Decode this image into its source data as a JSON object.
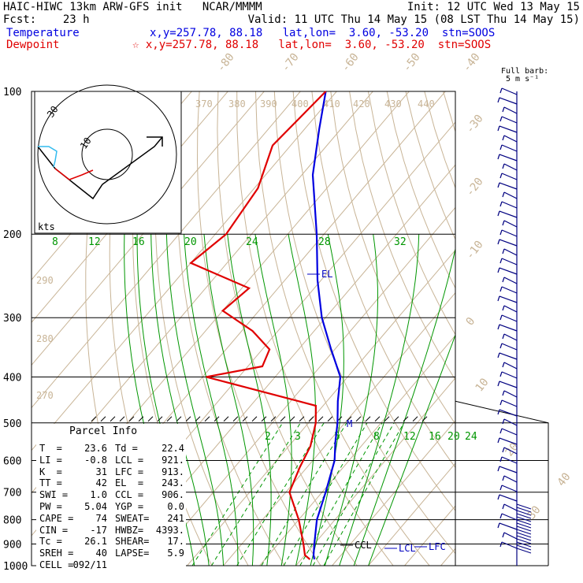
{
  "header": {
    "line1_left": "HAIC-HIWC 13km ARW-GFS init   NCAR/MMMM",
    "line1_right": "Init: 12 UTC Wed 13 May 15",
    "line2_left": "Fcst:    23 h",
    "line2_right": "Valid: 11 UTC Thu 14 May 15 (08 LST Thu 14 May 15)",
    "temp_label": "Temperature",
    "temp_info": "x,y=257.78, 88.18   lat,lon=  3.60, -53.20  stn=SOOS",
    "dew_label": "Dewpoint",
    "dew_info": "☆ x,y=257.78, 88.18   lat,lon=  3.60, -53.20  stn=SOOS",
    "barb_title": "Full barb:",
    "barb_unit": "5 m s⁻¹"
  },
  "colors": {
    "temperature": "#0000e0",
    "dewpoint": "#e00000",
    "isotherm": "#c8b496",
    "mixing_ratio": "#009600",
    "grid": "#000000"
  },
  "chart_data": {
    "type": "line",
    "title": "Skew-T log-P sounding",
    "y_scale": "log",
    "y_unit": "hPa",
    "pressure_ticks": [
      100,
      200,
      300,
      400,
      500,
      600,
      700,
      800,
      900,
      1000
    ],
    "isotherm_labels": [
      "-80",
      "-70",
      "-60",
      "-50",
      "-40",
      "-30",
      "-20",
      "-10",
      "0",
      "10",
      "20",
      "30",
      "40"
    ],
    "theta_labels": [
      "370",
      "380",
      "390",
      "400",
      "410",
      "420",
      "430",
      "440",
      "290",
      "280",
      "270"
    ],
    "mixing_ratio_labels_top": [
      "8",
      "12",
      "16",
      "20",
      "24",
      "28",
      "32"
    ],
    "mixing_ratio_labels_mid": [
      "2",
      "3",
      "5",
      "8",
      "12",
      "16",
      "20",
      "24"
    ],
    "series": [
      {
        "name": "Temperature",
        "points": [
          {
            "p": 100,
            "t": -83
          },
          {
            "p": 120,
            "t": -76
          },
          {
            "p": 150,
            "t": -67
          },
          {
            "p": 200,
            "t": -52
          },
          {
            "p": 250,
            "t": -41
          },
          {
            "p": 300,
            "t": -31
          },
          {
            "p": 350,
            "t": -21
          },
          {
            "p": 400,
            "t": -12
          },
          {
            "p": 450,
            "t": -7
          },
          {
            "p": 500,
            "t": -2
          },
          {
            "p": 550,
            "t": 2
          },
          {
            "p": 600,
            "t": 6
          },
          {
            "p": 700,
            "t": 11
          },
          {
            "p": 800,
            "t": 15
          },
          {
            "p": 900,
            "t": 20
          },
          {
            "p": 950,
            "t": 22.4
          },
          {
            "p": 970,
            "t": 23.6
          }
        ]
      },
      {
        "name": "Dewpoint",
        "points": [
          {
            "p": 100,
            "t": -83
          },
          {
            "p": 130,
            "t": -85
          },
          {
            "p": 160,
            "t": -79
          },
          {
            "p": 200,
            "t": -77
          },
          {
            "p": 230,
            "t": -80
          },
          {
            "p": 260,
            "t": -58
          },
          {
            "p": 290,
            "t": -60
          },
          {
            "p": 320,
            "t": -47
          },
          {
            "p": 350,
            "t": -38
          },
          {
            "p": 380,
            "t": -36
          },
          {
            "p": 400,
            "t": -49
          },
          {
            "p": 460,
            "t": -12
          },
          {
            "p": 500,
            "t": -8
          },
          {
            "p": 560,
            "t": -4
          },
          {
            "p": 620,
            "t": -2
          },
          {
            "p": 700,
            "t": 1
          },
          {
            "p": 800,
            "t": 10
          },
          {
            "p": 900,
            "t": 17
          },
          {
            "p": 950,
            "t": 20
          },
          {
            "p": 970,
            "t": 22.4
          }
        ]
      }
    ],
    "annotations": [
      {
        "text": "EL",
        "p": 243
      },
      {
        "text": "CCL",
        "p": 906
      },
      {
        "text": "LCL",
        "p": 921
      },
      {
        "text": "LFC",
        "p": 913
      },
      {
        "text": "M",
        "p": 500
      }
    ],
    "hodograph": {
      "axis_label": "kts",
      "ring_labels": [
        "30",
        "10"
      ]
    }
  },
  "parcel_info": {
    "title": "Parcel Info",
    "rows": [
      [
        "T  =",
        "23.6",
        "Td =",
        "22.4"
      ],
      [
        "LI =",
        "-0.8",
        "LCL =",
        "921."
      ],
      [
        "K  =",
        "31",
        "LFC =",
        "913."
      ],
      [
        "TT =",
        "42",
        "EL  =",
        "243."
      ],
      [
        "SWI =",
        "1.0",
        "CCL =",
        "906."
      ],
      [
        "PW =",
        "5.04",
        "YGP =",
        "0.0"
      ],
      [
        "CAPE =",
        "74",
        "SWEAT=",
        "241"
      ],
      [
        "CIN =",
        "-17",
        "HWBZ=",
        "4393."
      ],
      [
        "Tc =",
        "26.1",
        "SHEAR=",
        "17."
      ],
      [
        "SREH =",
        "40",
        "LAPSE=",
        "5.9"
      ],
      [
        "CELL =",
        "092/11",
        "",
        ""
      ]
    ]
  }
}
